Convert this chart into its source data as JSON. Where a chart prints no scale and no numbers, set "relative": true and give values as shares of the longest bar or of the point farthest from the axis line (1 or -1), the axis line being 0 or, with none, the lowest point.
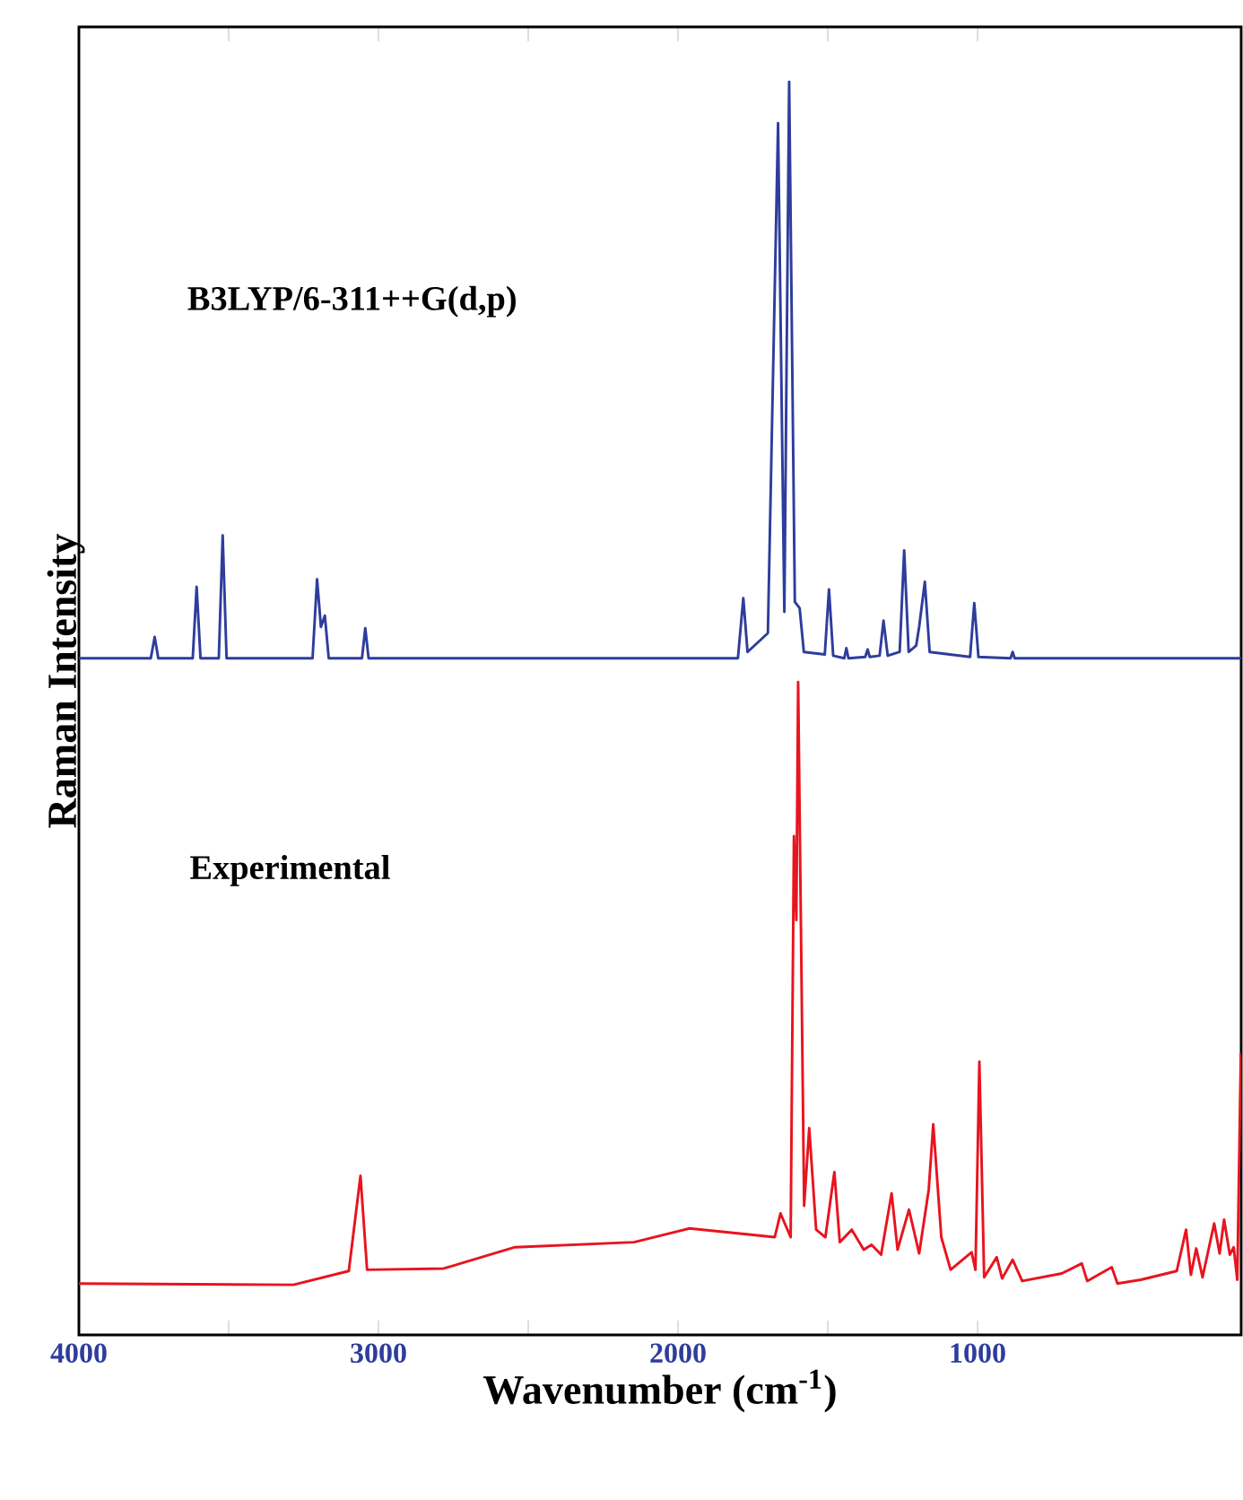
{
  "chart_data": {
    "type": "line",
    "relative": true,
    "xlabel": "Wavenumber (cm$^{-1}$)",
    "ylabel": "Raman Intensity",
    "xlim": [
      4000,
      120
    ],
    "xticks": [
      4000,
      3000,
      2000,
      1000
    ],
    "annotations": [
      "B3LYP/6-311++G(d,p)",
      "Experimental"
    ],
    "series": [
      {
        "color": "#2e3d9c",
        "x": [
          4000,
          3760,
          3747,
          3735,
          3620,
          3607,
          3594,
          3533,
          3520,
          3507,
          3220,
          3205,
          3192,
          3179,
          3166,
          3055,
          3044,
          3033,
          1800,
          1782,
          1768,
          1700,
          1666,
          1645,
          1629,
          1610,
          1594,
          1580,
          1510,
          1496,
          1482,
          1445,
          1438,
          1431,
          1375,
          1367,
          1360,
          1327,
          1314,
          1300,
          1260,
          1245,
          1230,
          1205,
          1195,
          1176,
          1160,
          1025,
          1011,
          997,
          890,
          883,
          876,
          120
        ],
        "values": [
          0.54,
          0.54,
          0.557,
          0.54,
          0.54,
          0.597,
          0.54,
          0.54,
          0.638,
          0.54,
          0.54,
          0.603,
          0.565,
          0.574,
          0.54,
          0.54,
          0.564,
          0.54,
          0.54,
          0.588,
          0.545,
          0.56,
          0.967,
          0.577,
          1.0,
          0.585,
          0.58,
          0.545,
          0.543,
          0.595,
          0.542,
          0.54,
          0.548,
          0.54,
          0.541,
          0.547,
          0.541,
          0.542,
          0.57,
          0.542,
          0.545,
          0.626,
          0.545,
          0.55,
          0.565,
          0.601,
          0.545,
          0.541,
          0.584,
          0.541,
          0.54,
          0.545,
          0.54,
          0.54
        ]
      },
      {
        "color": "#e8141e",
        "x": [
          4000,
          3284,
          3099,
          3060,
          3038,
          2782,
          2544,
          2147,
          1962,
          1677,
          1658,
          1624,
          1613,
          1605,
          1599,
          1579,
          1562,
          1539,
          1508,
          1478,
          1460,
          1420,
          1380,
          1354,
          1322,
          1287,
          1267,
          1229,
          1195,
          1163,
          1148,
          1121,
          1090,
          1020,
          1007,
          994,
          978,
          936,
          918,
          883,
          851,
          719,
          652,
          634,
          552,
          533,
          455,
          335,
          304,
          288,
          270,
          249,
          210,
          192,
          177,
          158,
          145,
          133,
          121
        ],
        "values": [
          0.041,
          0.04,
          0.051,
          0.127,
          0.052,
          0.053,
          0.07,
          0.074,
          0.085,
          0.078,
          0.097,
          0.078,
          0.398,
          0.331,
          0.521,
          0.103,
          0.165,
          0.084,
          0.078,
          0.13,
          0.074,
          0.084,
          0.068,
          0.072,
          0.064,
          0.113,
          0.068,
          0.1,
          0.065,
          0.116,
          0.168,
          0.078,
          0.052,
          0.066,
          0.052,
          0.218,
          0.046,
          0.062,
          0.045,
          0.06,
          0.043,
          0.049,
          0.057,
          0.043,
          0.054,
          0.041,
          0.044,
          0.051,
          0.084,
          0.048,
          0.069,
          0.046,
          0.089,
          0.065,
          0.092,
          0.064,
          0.07,
          0.044,
          0.225
        ]
      }
    ]
  }
}
